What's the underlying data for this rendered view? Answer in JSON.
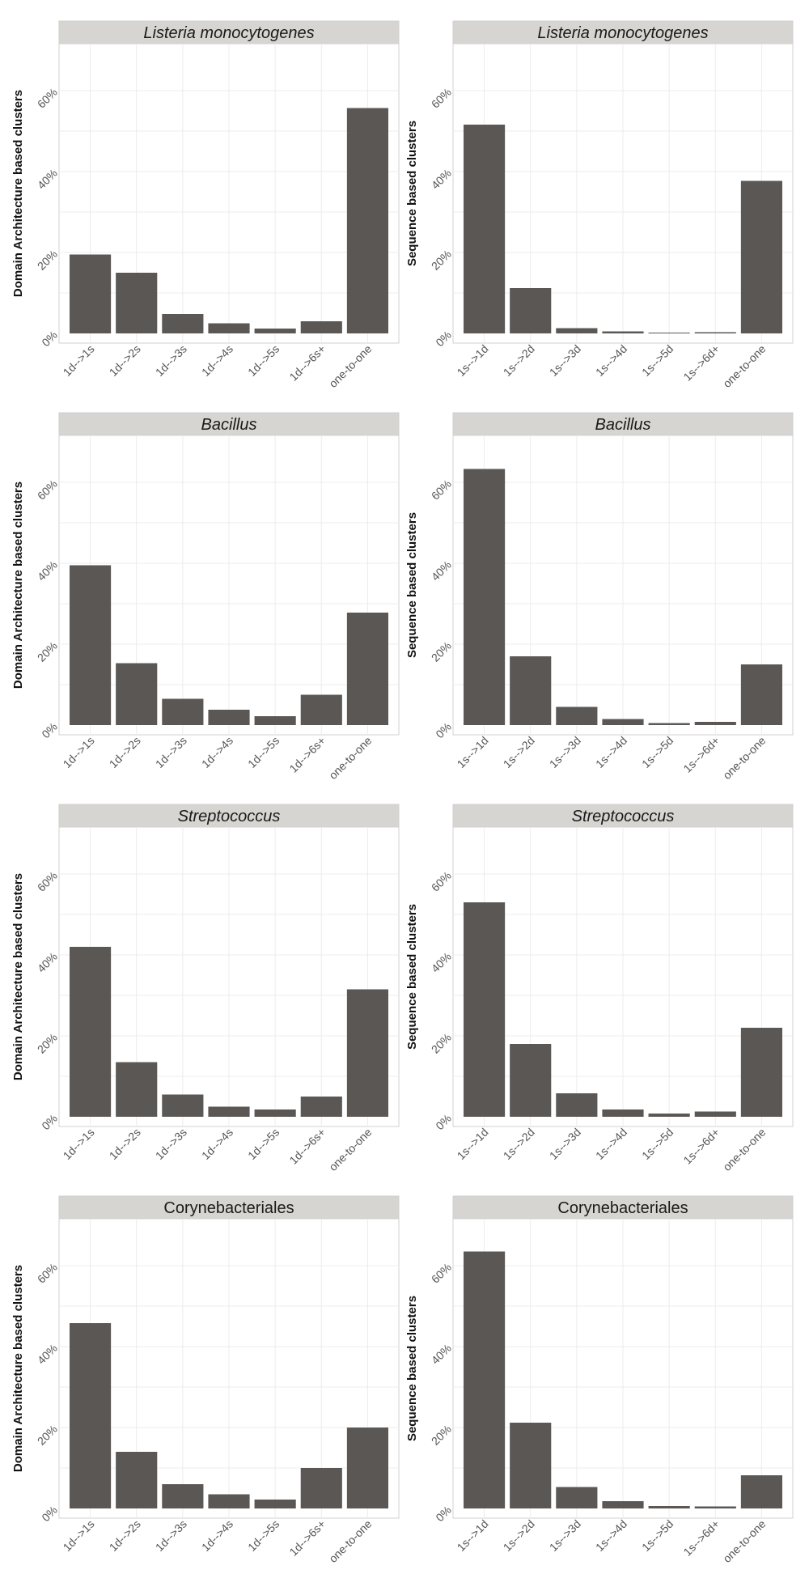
{
  "chart_data": [
    {
      "type": "bar",
      "title": "Listeria monocytogenes",
      "title_style": "italic",
      "ylabel": "Domain Architecture based clusters",
      "categories": [
        "1d-->1s",
        "1d-->2s",
        "1d-->3s",
        "1d-->4s",
        "1d-->5s",
        "1d-->6s+",
        "one-to-one"
      ],
      "values": [
        19.5,
        15.0,
        4.8,
        2.5,
        1.2,
        3.0,
        55.7
      ],
      "yticks": [
        "0%",
        "20%",
        "40%",
        "60%"
      ],
      "ylim": [
        0,
        70
      ],
      "grid": true
    },
    {
      "type": "bar",
      "title": "Listeria monocytogenes",
      "title_style": "italic",
      "ylabel": "Sequence based clusters",
      "categories": [
        "1s-->1d",
        "1s-->2d",
        "1s-->3d",
        "1s-->4d",
        "1s-->5d",
        "1s-->6d+",
        "one-to-one"
      ],
      "values": [
        51.6,
        11.2,
        1.3,
        0.5,
        0.2,
        0.3,
        37.7
      ],
      "yticks": [
        "0%",
        "20%",
        "40%",
        "60%"
      ],
      "ylim": [
        0,
        70
      ],
      "grid": true
    },
    {
      "type": "bar",
      "title": "Bacillus",
      "title_style": "italic",
      "ylabel": "Domain Architecture based clusters",
      "categories": [
        "1d-->1s",
        "1d-->2s",
        "1d-->3s",
        "1d-->4s",
        "1d-->5s",
        "1d-->6s+",
        "one-to-one"
      ],
      "values": [
        39.5,
        15.3,
        6.5,
        3.8,
        2.2,
        7.5,
        27.8
      ],
      "yticks": [
        "0%",
        "20%",
        "40%",
        "60%"
      ],
      "ylim": [
        0,
        70
      ],
      "grid": true
    },
    {
      "type": "bar",
      "title": "Bacillus",
      "title_style": "italic",
      "ylabel": "Sequence based clusters",
      "categories": [
        "1s-->1d",
        "1s-->2d",
        "1s-->3d",
        "1s-->4d",
        "1s-->5d",
        "1s-->6d+",
        "one-to-one"
      ],
      "values": [
        63.3,
        17.0,
        4.5,
        1.5,
        0.5,
        0.8,
        15.0
      ],
      "yticks": [
        "0%",
        "20%",
        "40%",
        "60%"
      ],
      "ylim": [
        0,
        70
      ],
      "grid": true
    },
    {
      "type": "bar",
      "title": "Streptococcus",
      "title_style": "italic",
      "ylabel": "Domain Architecture based clusters",
      "categories": [
        "1d-->1s",
        "1d-->2s",
        "1d-->3s",
        "1d-->4s",
        "1d-->5s",
        "1d-->6s+",
        "one-to-one"
      ],
      "values": [
        42.0,
        13.5,
        5.5,
        2.5,
        1.8,
        5.0,
        31.5
      ],
      "yticks": [
        "0%",
        "20%",
        "40%",
        "60%"
      ],
      "ylim": [
        0,
        70
      ],
      "grid": true
    },
    {
      "type": "bar",
      "title": "Streptococcus",
      "title_style": "italic",
      "ylabel": "Sequence based clusters",
      "categories": [
        "1s-->1d",
        "1s-->2d",
        "1s-->3d",
        "1s-->4d",
        "1s-->5d",
        "1s-->6d+",
        "one-to-one"
      ],
      "values": [
        53.0,
        18.0,
        5.8,
        1.8,
        0.8,
        1.3,
        22.0
      ],
      "yticks": [
        "0%",
        "20%",
        "40%",
        "60%"
      ],
      "ylim": [
        0,
        70
      ],
      "grid": true
    },
    {
      "type": "bar",
      "title": "Corynebacteriales",
      "title_style": "normal",
      "ylabel": "Domain Architecture based clusters",
      "categories": [
        "1d-->1s",
        "1d-->2s",
        "1d-->3s",
        "1d-->4s",
        "1d-->5s",
        "1d-->6s+",
        "one-to-one"
      ],
      "values": [
        45.8,
        14.0,
        6.0,
        3.5,
        2.2,
        10.0,
        20.0
      ],
      "yticks": [
        "0%",
        "20%",
        "40%",
        "60%"
      ],
      "ylim": [
        0,
        70
      ],
      "grid": true
    },
    {
      "type": "bar",
      "title": "Corynebacteriales",
      "title_style": "normal",
      "ylabel": "Sequence based clusters",
      "categories": [
        "1s-->1d",
        "1s-->2d",
        "1s-->3d",
        "1s-->4d",
        "1s-->5d",
        "1s-->6d+",
        "one-to-one"
      ],
      "values": [
        63.5,
        21.2,
        5.3,
        1.8,
        0.6,
        0.5,
        8.2
      ],
      "yticks": [
        "0%",
        "20%",
        "40%",
        "60%"
      ],
      "ylim": [
        0,
        70
      ],
      "grid": true
    }
  ],
  "style": {
    "bar_color": "#5b5754",
    "strip_color": "#d6d5d1",
    "grid_color": "#ececec",
    "border_color": "#d0d0d0"
  }
}
